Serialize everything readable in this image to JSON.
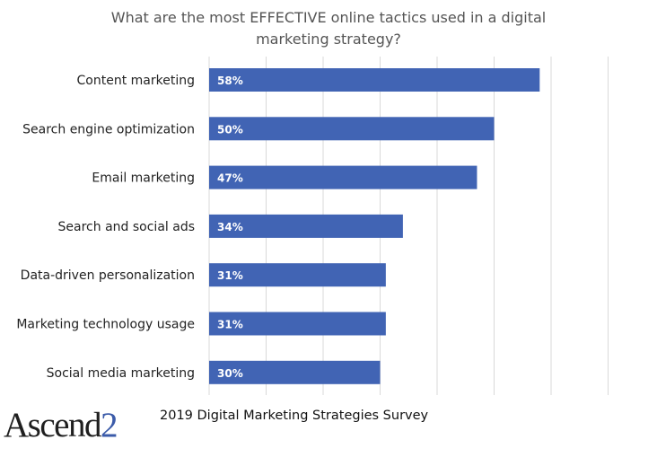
{
  "chart_data": {
    "type": "bar",
    "orientation": "horizontal",
    "title": "What are the most EFFECTIVE online tactics used in a digital marketing strategy?",
    "categories": [
      "Content marketing",
      "Search engine optimization",
      "Email marketing",
      "Search and social ads",
      "Data-driven personalization",
      "Marketing technology usage",
      "Social media marketing"
    ],
    "values": [
      58,
      50,
      47,
      34,
      31,
      31,
      30
    ],
    "value_labels": [
      "58%",
      "50%",
      "47%",
      "34%",
      "31%",
      "31%",
      "30%"
    ],
    "unit": "%",
    "xlim": [
      0,
      70
    ],
    "grid": true,
    "grid_step": 10,
    "bar_color": "#4164b4",
    "label_color": "#ffffff"
  },
  "footer": {
    "logo_text": "Ascend",
    "logo_accent": "2",
    "caption": "2019 Digital Marketing Strategies Survey"
  }
}
